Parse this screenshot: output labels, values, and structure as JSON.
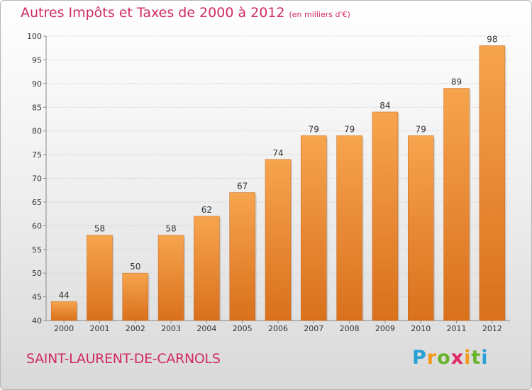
{
  "title": "Autres Impôts et Taxes de 2000 à 2012",
  "unit_note": "(en milliers d'€)",
  "commune": "SAINT-LAURENT-DE-CARNOLS",
  "brand": {
    "name": "Proxiti",
    "letters": [
      "P",
      "r",
      "o",
      "x",
      "i",
      "t",
      "i"
    ],
    "colors": [
      "#2a9fd6",
      "#f39a1c",
      "#6ab42d",
      "#e0276a",
      "#f39a1c",
      "#6ab42d",
      "#2a9fd6"
    ]
  },
  "colors": {
    "bar_top": "#f7a44e",
    "bar_bottom": "#d9701c",
    "title": "#d12c62"
  },
  "chart_data": {
    "type": "bar",
    "title": "Autres Impôts et Taxes de 2000 à 2012",
    "subtitle": "(en milliers d'€)",
    "categories": [
      "2000",
      "2001",
      "2002",
      "2003",
      "2004",
      "2005",
      "2006",
      "2007",
      "2008",
      "2009",
      "2010",
      "2011",
      "2012"
    ],
    "values": [
      44,
      58,
      50,
      58,
      62,
      67,
      74,
      79,
      79,
      84,
      79,
      89,
      98
    ],
    "ylim": [
      40,
      100
    ],
    "yticks": [
      40,
      45,
      50,
      55,
      60,
      65,
      70,
      75,
      80,
      85,
      90,
      95,
      100
    ],
    "grid": true,
    "data_labels": true,
    "xlabel": "",
    "ylabel": ""
  }
}
